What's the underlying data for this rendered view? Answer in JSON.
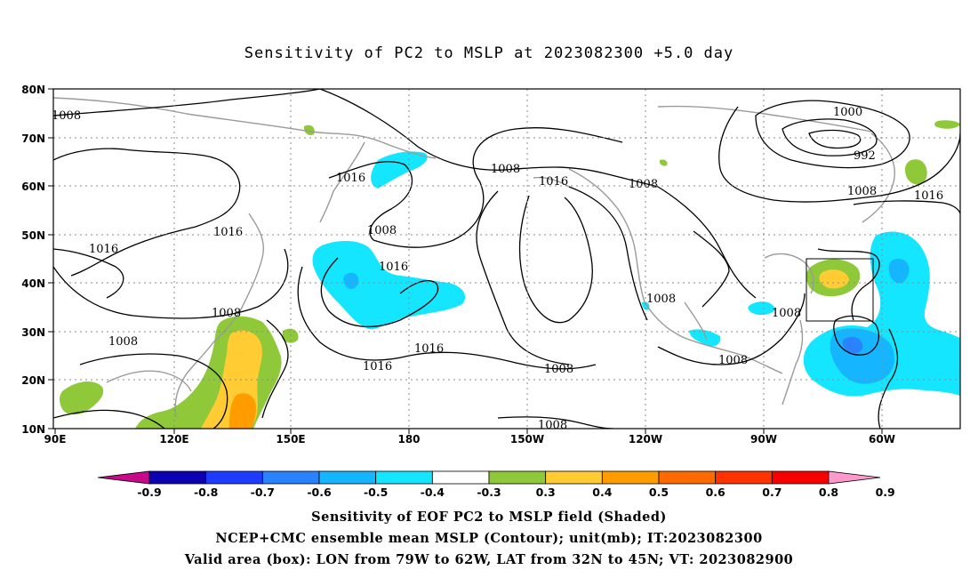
{
  "title": "Sensitivity of PC2 to MSLP at 2023082300 +5.0 day",
  "map": {
    "lat_ticks": [
      "80N",
      "70N",
      "60N",
      "50N",
      "40N",
      "30N",
      "20N",
      "10N"
    ],
    "lon_ticks": [
      "90E",
      "120E",
      "150E",
      "180",
      "150W",
      "120W",
      "90W",
      "60W"
    ],
    "contour_labels": [
      "1008",
      "1016",
      "1008",
      "1008",
      "1016",
      "1016",
      "1008",
      "1016",
      "1016",
      "1008",
      "1008",
      "1016",
      "1008",
      "1016",
      "1008",
      "1008",
      "1008",
      "1000",
      "992",
      "1008",
      "1016",
      "1008"
    ],
    "valid_box": {
      "lon_from": "79W",
      "lon_to": "62W",
      "lat_from": "32N",
      "lat_to": "45N"
    }
  },
  "colorbar": {
    "labels": [
      "-0.9",
      "-0.8",
      "-0.7",
      "-0.6",
      "-0.5",
      "-0.4",
      "-0.3",
      "0.3",
      "0.4",
      "0.5",
      "0.6",
      "0.7",
      "0.8",
      "0.9"
    ],
    "colors": [
      "#0d00b0",
      "#1e3cff",
      "#2a82ff",
      "#16b5ff",
      "#14e6ff",
      "#ffffff",
      "#8fc93a",
      "#ffcc33",
      "#ff9d00",
      "#ff6a00",
      "#ff3300",
      "#f80000"
    ],
    "low_color": "#c8098a",
    "high_color": "#ff99cc"
  },
  "captions": {
    "line1": "Sensitivity of EOF PC2 to MSLP field (Shaded)",
    "line2": "NCEP+CMC ensemble mean MSLP (Contour); unit(mb); IT:2023082300",
    "line3": "Valid area (box): LON from 79W to 62W, LAT from 32N to 45N; VT: 2023082900"
  }
}
